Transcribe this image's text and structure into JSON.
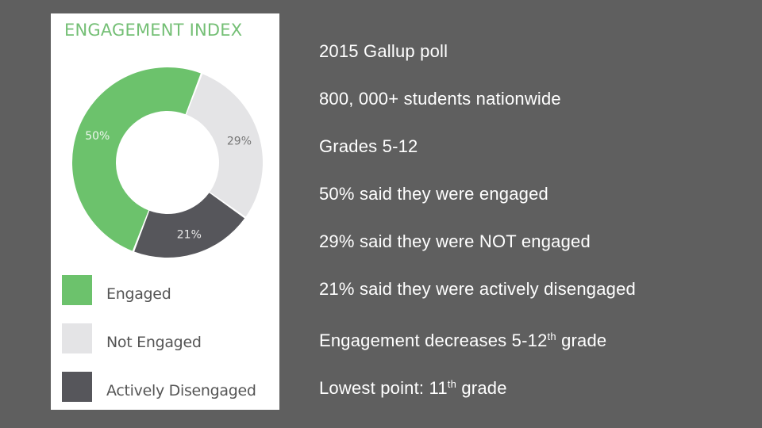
{
  "chart_data": {
    "type": "donut",
    "title": "ENGAGEMENT INDEX",
    "categories": [
      "Engaged",
      "Not Engaged",
      "Actively Disengaged"
    ],
    "values": [
      50,
      29,
      21
    ],
    "data_labels": [
      "50%",
      "29%",
      "21%"
    ],
    "colors": [
      "#6cc26c",
      "#e4e4e6",
      "#56565b"
    ],
    "legend_position": "bottom"
  },
  "bullets": [
    {
      "text": "2015 Gallup poll"
    },
    {
      "text": "800, 000+ students nationwide"
    },
    {
      "text": "Grades 5-12"
    },
    {
      "text": "50%  said they were engaged"
    },
    {
      "text": "29%  said they were NOT engaged"
    },
    {
      "text": "21%  said they were actively disengaged"
    },
    {
      "text": "Engagement decreases 5-12",
      "sup": "th",
      "after": " grade"
    },
    {
      "text": "Lowest point: 11",
      "sup": "th",
      "after": " grade"
    }
  ]
}
